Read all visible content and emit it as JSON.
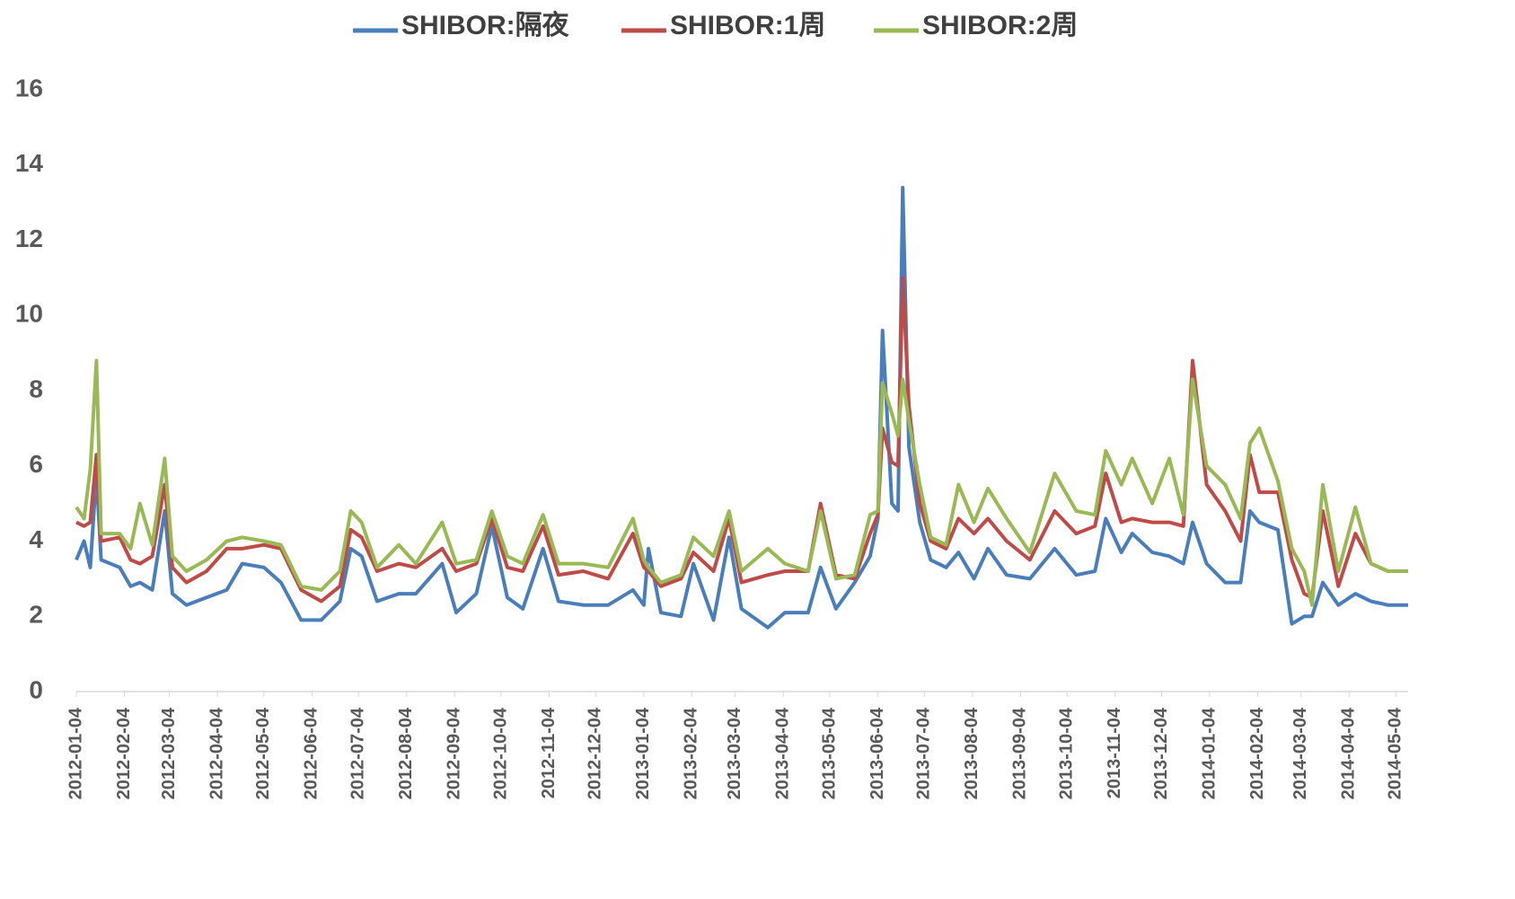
{
  "chart_data": {
    "type": "line",
    "x": [
      "2012-01-04",
      "2012-01-09",
      "2012-01-13",
      "2012-01-17",
      "2012-01-20",
      "2012-02-01",
      "2012-02-08",
      "2012-02-14",
      "2012-02-22",
      "2012-03-01",
      "2012-03-06",
      "2012-03-15",
      "2012-03-28",
      "2012-04-10",
      "2012-04-20",
      "2012-05-04",
      "2012-05-15",
      "2012-05-28",
      "2012-06-10",
      "2012-06-22",
      "2012-06-29",
      "2012-07-06",
      "2012-07-16",
      "2012-07-30",
      "2012-08-10",
      "2012-08-27",
      "2012-09-05",
      "2012-09-18",
      "2012-09-28",
      "2012-10-08",
      "2012-10-18",
      "2012-10-31",
      "2012-11-10",
      "2012-11-26",
      "2012-12-12",
      "2012-12-28",
      "2013-01-04",
      "2013-01-07",
      "2013-01-15",
      "2013-01-28",
      "2013-02-05",
      "2013-02-18",
      "2013-02-28",
      "2013-03-08",
      "2013-03-25",
      "2013-04-05",
      "2013-04-20",
      "2013-04-28",
      "2013-05-08",
      "2013-05-20",
      "2013-05-30",
      "2013-06-04",
      "2013-06-07",
      "2013-06-13",
      "2013-06-17",
      "2013-06-20",
      "2013-06-24",
      "2013-07-01",
      "2013-07-08",
      "2013-07-18",
      "2013-07-26",
      "2013-08-05",
      "2013-08-14",
      "2013-08-26",
      "2013-09-10",
      "2013-09-26",
      "2013-10-10",
      "2013-10-22",
      "2013-10-29",
      "2013-11-08",
      "2013-11-15",
      "2013-11-28",
      "2013-12-09",
      "2013-12-18",
      "2013-12-24",
      "2014-01-02",
      "2014-01-14",
      "2014-01-24",
      "2014-01-30",
      "2014-02-05",
      "2014-02-17",
      "2014-02-26",
      "2014-03-06",
      "2014-03-11",
      "2014-03-18",
      "2014-03-28",
      "2014-04-08",
      "2014-04-18",
      "2014-04-29",
      "2014-05-12"
    ],
    "series": [
      {
        "name": "SHIBOR:隔夜",
        "color": "#4a7ebb",
        "values": [
          3.5,
          4.0,
          3.3,
          5.8,
          3.5,
          3.3,
          2.8,
          2.9,
          2.7,
          4.8,
          2.6,
          2.3,
          2.5,
          2.7,
          3.4,
          3.3,
          2.9,
          1.9,
          1.9,
          2.4,
          3.8,
          3.6,
          2.4,
          2.6,
          2.6,
          3.4,
          2.1,
          2.6,
          4.4,
          2.5,
          2.2,
          3.8,
          2.4,
          2.3,
          2.3,
          2.7,
          2.3,
          3.8,
          2.1,
          2.0,
          3.4,
          1.9,
          4.1,
          2.2,
          1.7,
          2.1,
          2.1,
          3.3,
          2.2,
          2.9,
          3.6,
          4.6,
          9.6,
          5.0,
          4.8,
          13.4,
          6.5,
          4.5,
          3.5,
          3.3,
          3.7,
          3.0,
          3.8,
          3.1,
          3.0,
          3.8,
          3.1,
          3.2,
          4.6,
          3.7,
          4.2,
          3.7,
          3.6,
          3.4,
          4.5,
          3.4,
          2.9,
          2.9,
          4.8,
          4.5,
          4.3,
          1.8,
          2.0,
          2.0,
          2.9,
          2.3,
          2.6,
          2.4,
          2.3,
          2.3
        ]
      },
      {
        "name": "SHIBOR:1周",
        "color": "#be4b48",
        "values": [
          4.5,
          4.4,
          4.5,
          6.3,
          4.0,
          4.1,
          3.5,
          3.4,
          3.6,
          5.5,
          3.3,
          2.9,
          3.2,
          3.8,
          3.8,
          3.9,
          3.8,
          2.7,
          2.4,
          2.8,
          4.3,
          4.1,
          3.2,
          3.4,
          3.3,
          3.8,
          3.2,
          3.4,
          4.6,
          3.3,
          3.2,
          4.4,
          3.1,
          3.2,
          3.0,
          4.2,
          3.3,
          3.2,
          2.8,
          3.0,
          3.7,
          3.2,
          4.6,
          2.9,
          3.1,
          3.2,
          3.2,
          5.0,
          3.1,
          3.0,
          4.2,
          4.7,
          7.0,
          6.1,
          6.0,
          11.0,
          7.6,
          5.0,
          4.0,
          3.8,
          4.6,
          4.2,
          4.6,
          4.0,
          3.5,
          4.8,
          4.2,
          4.4,
          5.8,
          4.5,
          4.6,
          4.5,
          4.5,
          4.4,
          8.8,
          5.5,
          4.8,
          4.0,
          6.3,
          5.3,
          5.3,
          3.5,
          2.6,
          2.5,
          4.8,
          2.8,
          4.2,
          3.4,
          3.2,
          3.2
        ]
      },
      {
        "name": "SHIBOR:2周",
        "color": "#98b954",
        "values": [
          4.9,
          4.6,
          5.9,
          8.8,
          4.2,
          4.2,
          3.8,
          5.0,
          3.9,
          6.2,
          3.6,
          3.2,
          3.5,
          4.0,
          4.1,
          4.0,
          3.9,
          2.8,
          2.7,
          3.2,
          4.8,
          4.5,
          3.3,
          3.9,
          3.4,
          4.5,
          3.4,
          3.5,
          4.8,
          3.6,
          3.4,
          4.7,
          3.4,
          3.4,
          3.3,
          4.6,
          3.5,
          3.3,
          2.9,
          3.1,
          4.1,
          3.6,
          4.8,
          3.2,
          3.8,
          3.4,
          3.2,
          4.8,
          3.0,
          3.1,
          4.7,
          4.8,
          8.2,
          7.4,
          6.8,
          8.3,
          7.2,
          5.5,
          4.1,
          3.9,
          5.5,
          4.5,
          5.4,
          4.6,
          3.7,
          5.8,
          4.8,
          4.7,
          6.4,
          5.5,
          6.2,
          5.0,
          6.2,
          4.7,
          8.3,
          6.0,
          5.5,
          4.6,
          6.6,
          7.0,
          5.6,
          3.8,
          3.2,
          2.3,
          5.5,
          3.2,
          4.9,
          3.4,
          3.2,
          3.2
        ]
      }
    ],
    "xlim": [
      "2012-01-04",
      "2014-05-12"
    ],
    "xticks": [
      "2012-01-04",
      "2012-02-04",
      "2012-03-04",
      "2012-04-04",
      "2012-05-04",
      "2012-06-04",
      "2012-07-04",
      "2012-08-04",
      "2012-09-04",
      "2012-10-04",
      "2012-11-04",
      "2012-12-04",
      "2013-01-04",
      "2013-02-04",
      "2013-03-04",
      "2013-04-04",
      "2013-05-04",
      "2013-06-04",
      "2013-07-04",
      "2013-08-04",
      "2013-09-04",
      "2013-10-04",
      "2013-11-04",
      "2013-12-04",
      "2014-01-04",
      "2014-02-04",
      "2014-03-04",
      "2014-04-04",
      "2014-05-04"
    ],
    "ylim": [
      0,
      16
    ],
    "yticks": [
      0,
      2,
      4,
      6,
      8,
      10,
      12,
      14,
      16
    ],
    "legend": "top",
    "grid": false
  }
}
